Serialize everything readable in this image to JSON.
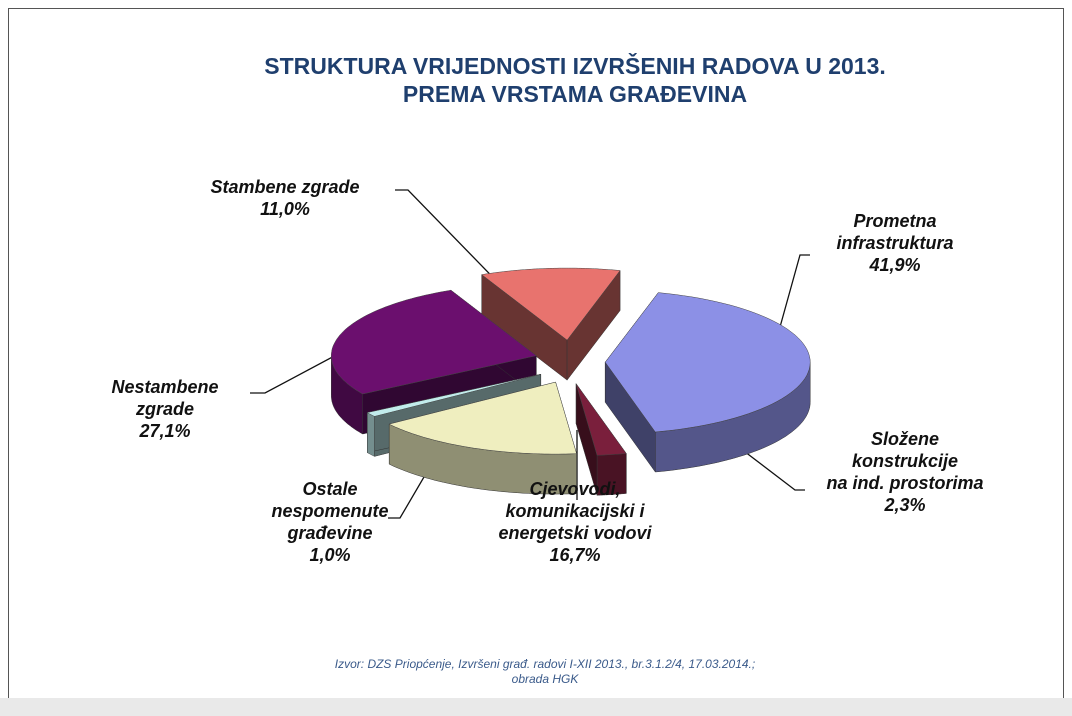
{
  "chart_data": {
    "type": "pie",
    "title": "STRUKTURA VRIJEDNOSTI IZVRŠENIH RADOVA U 2013.\nPREMA VRSTAMA GRAĐEVINA",
    "categories": [
      "Prometna\ninfrastruktura",
      "Složene\nkonstrukcije\nna ind. prostorima",
      "Cjevovodi,\nkomunikacijski  i\nenergetski vodovi",
      "Ostale\nnespomenute\ngrađevine",
      "Nestambene\nzgrade",
      "Stambene zgrade"
    ],
    "values": [
      41.9,
      2.3,
      16.7,
      1.0,
      27.1,
      11.0
    ],
    "value_labels": [
      "41,9%",
      "2,3%",
      "16,7%",
      "1,0%",
      "27,1%",
      "11,0%"
    ],
    "colors": [
      "#8c90e6",
      "#7a1f3c",
      "#efeebf",
      "#c2ecec",
      "#6b0f6e",
      "#e8736e"
    ],
    "source": "Izvor: DZS Priopćenje, Izvršeni građ. radovi I-XII 2013., br.3.1.2/4, 17.03.2014.;\nobrada HGK"
  }
}
